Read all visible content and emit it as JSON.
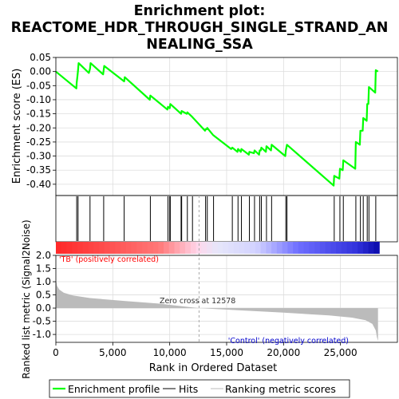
{
  "chart_data": {
    "type": "line",
    "title": "Enrichment plot: REACTOME_HDR_THROUGH_SINGLE_STRAND_ANNEALING_SSA",
    "title_lines": [
      "Enrichment plot:",
      "REACTOME_HDR_THROUGH_SINGLE_STRAND_AN",
      "NEALING_SSA"
    ],
    "xlabel": "Rank in Ordered Dataset",
    "es_panel": {
      "ylabel": "Enrichment score (ES)",
      "ylim": [
        -0.44,
        0.05
      ],
      "yticks": [
        0.05,
        0.0,
        -0.05,
        -0.1,
        -0.15,
        -0.2,
        -0.25,
        -0.3,
        -0.35,
        -0.4
      ],
      "ytick_labels": [
        "0.05",
        "0.00",
        "-0.05",
        "-0.10",
        "-0.15",
        "-0.20",
        "-0.25",
        "-0.30",
        "-0.35",
        "-0.40"
      ],
      "grid": true,
      "series": [
        {
          "name": "Enrichment profile",
          "color": "#00ff00",
          "x": [
            0,
            1800,
            1830,
            1900,
            1950,
            2000,
            2900,
            3000,
            3050,
            4150,
            4200,
            4250,
            6000,
            6050,
            8250,
            8300,
            9800,
            9850,
            10000,
            10050,
            11000,
            11050,
            11500,
            11550,
            11950,
            13100,
            13150,
            13250,
            13300,
            13800,
            15400,
            15500,
            15950,
            16000,
            16250,
            16300,
            16950,
            17000,
            17400,
            17450,
            17850,
            17900,
            18000,
            18050,
            18450,
            18500,
            18900,
            18950,
            20150,
            20200,
            20300,
            24400,
            24450,
            24900,
            24950,
            25200,
            25250,
            26300,
            26350,
            26700,
            26750,
            26950,
            27000,
            27300,
            27350,
            27450,
            27500,
            28050,
            28100,
            28300
          ],
          "y": [
            0.0,
            -0.06,
            -0.04,
            -0.015,
            0.005,
            0.03,
            -0.005,
            0.01,
            0.03,
            -0.01,
            0.005,
            0.02,
            -0.035,
            -0.02,
            -0.1,
            -0.085,
            -0.135,
            -0.125,
            -0.13,
            -0.115,
            -0.15,
            -0.14,
            -0.15,
            -0.145,
            -0.16,
            -0.21,
            -0.205,
            -0.205,
            -0.2,
            -0.225,
            -0.275,
            -0.27,
            -0.285,
            -0.275,
            -0.285,
            -0.275,
            -0.295,
            -0.285,
            -0.29,
            -0.28,
            -0.295,
            -0.28,
            -0.28,
            -0.27,
            -0.285,
            -0.265,
            -0.28,
            -0.26,
            -0.3,
            -0.28,
            -0.26,
            -0.405,
            -0.37,
            -0.38,
            -0.345,
            -0.35,
            -0.315,
            -0.345,
            -0.25,
            -0.26,
            -0.21,
            -0.21,
            -0.165,
            -0.175,
            -0.115,
            -0.115,
            -0.055,
            -0.075,
            0.005,
            0.0
          ]
        }
      ]
    },
    "hits": {
      "name": "Hits",
      "color": "#000000",
      "x": [
        1830,
        1950,
        3000,
        4200,
        6000,
        8300,
        9850,
        10000,
        10050,
        11000,
        11050,
        11550,
        12000,
        13150,
        13300,
        13850,
        15500,
        16000,
        16300,
        17000,
        17450,
        17900,
        18050,
        18500,
        18950,
        20200,
        20300,
        24450,
        24950,
        25250,
        26350,
        26750,
        27000,
        27350,
        27500,
        28100
      ]
    },
    "ranking_panel": {
      "ylabel": "Ranked list metric (Signal2Noise)",
      "ylim": [
        -1.3,
        2.0
      ],
      "yticks": [
        2.0,
        1.5,
        1.0,
        0.5,
        0.0,
        -0.5,
        -1.0
      ],
      "ytick_labels": [
        "2.0",
        "1.5",
        "1.0",
        "0.5",
        "0.0",
        "-0.5",
        "-1.0"
      ],
      "grid": true,
      "series": [
        {
          "name": "Ranking metric scores",
          "color": "#bbbbbb",
          "x": [
            0,
            100,
            300,
            700,
            1500,
            3000,
            6000,
            9000,
            12578,
            16000,
            20000,
            24000,
            26000,
            27200,
            27800,
            28100,
            28200,
            28300
          ],
          "y": [
            1.1,
            0.85,
            0.7,
            0.58,
            0.48,
            0.38,
            0.27,
            0.17,
            0.0,
            -0.08,
            -0.17,
            -0.28,
            -0.36,
            -0.46,
            -0.6,
            -0.85,
            -1.1,
            -1.25
          ]
        }
      ],
      "zero_cross": 12578,
      "zero_cross_label": "Zero cross at 12578",
      "positive_label": "'TB' (positively correlated)",
      "negative_label": "'Control' (negatively correlated)"
    },
    "xlim": [
      0,
      30000
    ],
    "xticks": [
      0,
      5000,
      10000,
      15000,
      20000,
      25000
    ],
    "xtick_labels": [
      "0",
      "5,000",
      "10,000",
      "15,000",
      "20,000",
      "25,000"
    ],
    "dataset_size": 28400,
    "legend": {
      "placement": "bottom",
      "entries": [
        {
          "name": "Enrichment profile",
          "color": "#00ff00"
        },
        {
          "name": "Hits",
          "color": "#000000"
        },
        {
          "name": "Ranking metric scores",
          "color": "#bbbbbb"
        }
      ]
    }
  }
}
